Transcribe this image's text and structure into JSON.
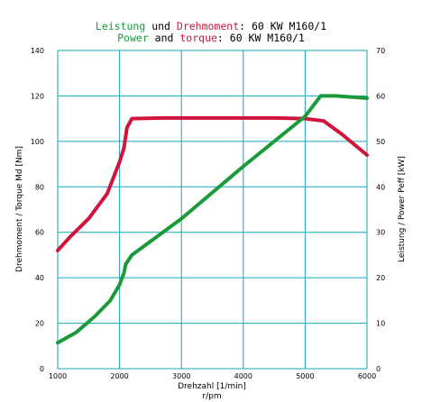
{
  "title": {
    "line1": [
      {
        "text": "Leistung",
        "color": "#1a9a3a"
      },
      {
        "text": " und ",
        "color": "#000000"
      },
      {
        "text": "Drehmoment",
        "color": "#d0143c"
      },
      {
        "text": ": 60 KW M160/1",
        "color": "#000000"
      }
    ],
    "line2": [
      {
        "text": "Power",
        "color": "#1a9a3a"
      },
      {
        "text": " and ",
        "color": "#000000"
      },
      {
        "text": "torque",
        "color": "#d0143c"
      },
      {
        "text": ": 60 KW M160/1",
        "color": "#000000"
      }
    ]
  },
  "chart_data": {
    "type": "line",
    "grid": true,
    "grid_color": "#1aa6b8",
    "xlabel": "Drehzahl [1/min]",
    "xlabel_sub": "r/pm",
    "ylabel_left": "Drehmoment / Torque Md [Nm]",
    "ylabel_right": "Leistung / Power Peff [kW]",
    "xlim": [
      1000,
      6000
    ],
    "ylim_left": [
      0,
      140
    ],
    "ylim_right": [
      0,
      70
    ],
    "x_ticks": [
      "1000",
      "2000",
      "3000",
      "4000",
      "5000",
      "6000"
    ],
    "y_ticks_left": [
      "0",
      "20",
      "40",
      "60",
      "80",
      "100",
      "120",
      "140"
    ],
    "y_ticks_right": [
      "0",
      "10",
      "20",
      "30",
      "40",
      "50",
      "60",
      "70"
    ],
    "series": [
      {
        "axis": "left",
        "color": "#d0143c",
        "x": [
          1000,
          1200,
          1500,
          1800,
          2000,
          2070,
          2120,
          2200,
          2700,
          3500,
          4500,
          5000,
          5300,
          5600,
          6000
        ],
        "values": [
          52,
          58,
          66,
          77,
          91,
          97,
          106,
          110,
          110.3,
          110.3,
          110.3,
          110,
          109,
          103,
          94
        ]
      },
      {
        "axis": "right",
        "color": "#1a9a3a",
        "x": [
          1000,
          1300,
          1600,
          1850,
          2000,
          2070,
          2100,
          2200,
          2300,
          3000,
          4000,
          5000,
          5250,
          5500,
          6000
        ],
        "values": [
          5.7,
          8,
          11.5,
          15,
          18.5,
          21,
          23,
          25,
          26,
          33,
          44.5,
          55.5,
          60,
          60,
          59.5
        ]
      }
    ]
  }
}
